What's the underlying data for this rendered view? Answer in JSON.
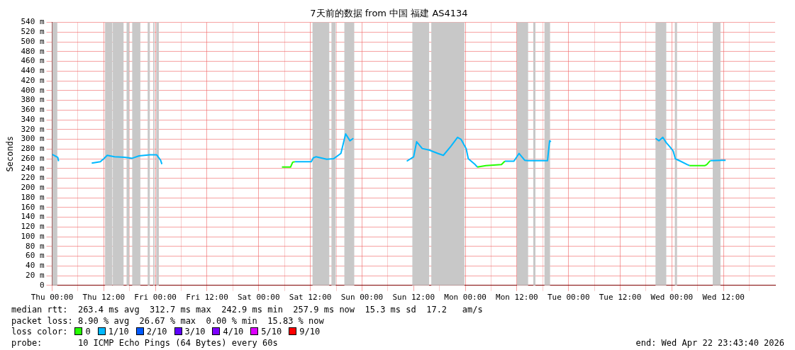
{
  "chart_data": {
    "type": "line",
    "title": "7天前的数据 from 中国 福建 AS4134",
    "ylabel": "Seconds",
    "legend_title": "loss color:",
    "legend": "bottom",
    "grid": true,
    "xlim": [
      "2026-04-16T00:00",
      "2026-04-23T00:00"
    ],
    "xticks": [
      {
        "value": "2026-04-16T00:00",
        "label": "Thu 00:00"
      },
      {
        "value": "2026-04-16T06:00",
        "label": null
      },
      {
        "value": "2026-04-16T12:00",
        "label": "Thu 12:00"
      },
      {
        "value": "2026-04-16T18:00",
        "label": null
      },
      {
        "value": "2026-04-17T00:00",
        "label": "Fri 00:00"
      },
      {
        "value": "2026-04-17T06:00",
        "label": null
      },
      {
        "value": "2026-04-17T12:00",
        "label": "Fri 12:00"
      },
      {
        "value": "2026-04-17T18:00",
        "label": null
      },
      {
        "value": "2026-04-18T00:00",
        "label": "Sat 00:00"
      },
      {
        "value": "2026-04-18T06:00",
        "label": null
      },
      {
        "value": "2026-04-18T12:00",
        "label": "Sat 12:00"
      },
      {
        "value": "2026-04-18T18:00",
        "label": null
      },
      {
        "value": "2026-04-19T00:00",
        "label": "Sun 00:00"
      },
      {
        "value": "2026-04-19T06:00",
        "label": null
      },
      {
        "value": "2026-04-19T12:00",
        "label": "Sun 12:00"
      },
      {
        "value": "2026-04-19T18:00",
        "label": null
      },
      {
        "value": "2026-04-20T00:00",
        "label": "Mon 00:00"
      },
      {
        "value": "2026-04-20T06:00",
        "label": null
      },
      {
        "value": "2026-04-20T12:00",
        "label": "Mon 12:00"
      },
      {
        "value": "2026-04-20T18:00",
        "label": null
      },
      {
        "value": "2026-04-21T00:00",
        "label": "Tue 00:00"
      },
      {
        "value": "2026-04-21T06:00",
        "label": null
      },
      {
        "value": "2026-04-21T12:00",
        "label": "Tue 12:00"
      },
      {
        "value": "2026-04-21T18:00",
        "label": null
      },
      {
        "value": "2026-04-22T00:00",
        "label": "Wed 00:00"
      },
      {
        "value": "2026-04-22T06:00",
        "label": null
      },
      {
        "value": "2026-04-22T12:00",
        "label": "Wed 12:00"
      },
      {
        "value": "2026-04-22T18:00",
        "label": null
      }
    ],
    "ylim": [
      0,
      540
    ],
    "yticks": [
      0,
      {
        "value": 20,
        "label": "20 m"
      },
      {
        "value": 40,
        "label": "40 m"
      },
      {
        "value": 60,
        "label": "60 m"
      },
      {
        "value": 80,
        "label": "80 m"
      },
      {
        "value": 100,
        "label": "100 m"
      },
      {
        "value": 120,
        "label": "120 m"
      },
      {
        "value": 140,
        "label": "140 m"
      },
      {
        "value": 160,
        "label": "160 m"
      },
      {
        "value": 180,
        "label": "180 m"
      },
      {
        "value": 200,
        "label": "200 m"
      },
      {
        "value": 220,
        "label": "220 m"
      },
      {
        "value": 240,
        "label": "240 m"
      },
      {
        "value": 260,
        "label": "260 m"
      },
      {
        "value": 280,
        "label": "280 m"
      },
      {
        "value": 300,
        "label": "300 m"
      },
      {
        "value": 320,
        "label": "320 m"
      },
      {
        "value": 340,
        "label": "340 m"
      },
      {
        "value": 360,
        "label": "360 m"
      },
      {
        "value": 380,
        "label": "380 m"
      },
      {
        "value": 400,
        "label": "400 m"
      },
      {
        "value": 420,
        "label": "420 m"
      },
      {
        "value": 440,
        "label": "440 m"
      },
      {
        "value": 460,
        "label": "460 m"
      },
      {
        "value": 480,
        "label": "480 m"
      },
      {
        "value": 500,
        "label": "500 m"
      },
      {
        "value": 520,
        "label": "520 m"
      },
      {
        "value": 540,
        "label": "540 m"
      }
    ],
    "bands": [
      {
        "axis": "x",
        "from": "2026-04-16T00:00",
        "to": "2026-04-16T01:12",
        "color": "#c8c8c8"
      },
      {
        "axis": "x",
        "from": "2026-04-16T12:18",
        "to": "2026-04-16T14:00",
        "color": "#c8c8c8"
      },
      {
        "axis": "x",
        "from": "2026-04-16T14:06",
        "to": "2026-04-16T16:36",
        "color": "#c8c8c8"
      },
      {
        "axis": "x",
        "from": "2026-04-16T17:18",
        "to": "2026-04-16T17:54",
        "color": "#c8c8c8"
      },
      {
        "axis": "x",
        "from": "2026-04-16T18:36",
        "to": "2026-04-16T20:30",
        "color": "#c8c8c8"
      },
      {
        "axis": "x",
        "from": "2026-04-16T22:12",
        "to": "2026-04-16T22:42",
        "color": "#c8c8c8"
      },
      {
        "axis": "x",
        "from": "2026-04-16T23:30",
        "to": "2026-04-16T23:48",
        "color": "#c8c8c8"
      },
      {
        "axis": "x",
        "from": "2026-04-17T00:12",
        "to": "2026-04-17T00:48",
        "color": "#c8c8c8"
      },
      {
        "axis": "x",
        "from": "2026-04-18T12:30",
        "to": "2026-04-18T16:24",
        "color": "#c8c8c8"
      },
      {
        "axis": "x",
        "from": "2026-04-18T16:54",
        "to": "2026-04-18T17:54",
        "color": "#c8c8c8"
      },
      {
        "axis": "x",
        "from": "2026-04-18T19:54",
        "to": "2026-04-18T22:12",
        "color": "#c8c8c8"
      },
      {
        "axis": "x",
        "from": "2026-04-19T11:42",
        "to": "2026-04-19T15:36",
        "color": "#c8c8c8"
      },
      {
        "axis": "x",
        "from": "2026-04-19T16:06",
        "to": "2026-04-19T23:48",
        "color": "#c8c8c8"
      },
      {
        "axis": "x",
        "from": "2026-04-20T12:00",
        "to": "2026-04-20T14:36",
        "color": "#c8c8c8"
      },
      {
        "axis": "x",
        "from": "2026-04-20T15:48",
        "to": "2026-04-20T16:18",
        "color": "#c8c8c8"
      },
      {
        "axis": "x",
        "from": "2026-04-20T18:24",
        "to": "2026-04-20T19:42",
        "color": "#c8c8c8"
      },
      {
        "axis": "x",
        "from": "2026-04-21T20:12",
        "to": "2026-04-21T22:42",
        "color": "#c8c8c8"
      },
      {
        "axis": "x",
        "from": "2026-04-22T00:42",
        "to": "2026-04-22T01:12",
        "color": "#c8c8c8"
      },
      {
        "axis": "x",
        "from": "2026-04-22T09:30",
        "to": "2026-04-22T11:18",
        "color": "#c8c8c8"
      }
    ],
    "series": [
      {
        "name": "0",
        "color": "#26ff00",
        "x": [
          "2026-04-18T05:24",
          "2026-04-18T07:24",
          "2026-04-18T07:54",
          "2026-04-18T08:24",
          "2026-04-18T22:00",
          "2026-04-20T02:48",
          "2026-04-20T04:48",
          "2026-04-20T08:24",
          "2026-04-20T09:12",
          "2026-04-20T19:54",
          "2026-04-22T04:06",
          "2026-04-22T07:42",
          "2026-04-22T08:06",
          "2026-04-22T08:54"
        ],
        "values": [
          243,
          243,
          253,
          254,
          null,
          243,
          246,
          248,
          255,
          null,
          246,
          246,
          248,
          256
        ]
      },
      {
        "name": "1/10",
        "color": "#00b8ff",
        "x": [
          "2026-04-16T00:00",
          "2026-04-16T01:18",
          "2026-04-16T01:30",
          "2026-04-16T01:36",
          "2026-04-16T09:12",
          "2026-04-16T11:12",
          "2026-04-16T12:00",
          "2026-04-16T12:48",
          "2026-04-16T14:30",
          "2026-04-16T16:54",
          "2026-04-16T18:36",
          "2026-04-16T20:12",
          "2026-04-16T22:42",
          "2026-04-17T00:18",
          "2026-04-17T01:12",
          "2026-04-17T01:30",
          "2026-04-17T16:00",
          "2026-04-18T08:24",
          "2026-04-18T12:12",
          "2026-04-18T12:42",
          "2026-04-18T13:18",
          "2026-04-18T15:48",
          "2026-04-18T17:24",
          "2026-04-18T19:06",
          "2026-04-18T20:12",
          "2026-04-18T21:12",
          "2026-04-18T22:00",
          "2026-04-19T03:00",
          "2026-04-19T10:24",
          "2026-04-19T12:00",
          "2026-04-19T12:42",
          "2026-04-19T14:00",
          "2026-04-19T15:36",
          "2026-04-19T17:36",
          "2026-04-19T18:54",
          "2026-04-19T20:36",
          "2026-04-19T22:12",
          "2026-04-19T23:00",
          "2026-04-20T00:12",
          "2026-04-20T00:42",
          "2026-04-20T02:18",
          "2026-04-20T02:48",
          "2026-04-20T04:00",
          "2026-04-20T09:12",
          "2026-04-20T11:18",
          "2026-04-20T12:30",
          "2026-04-20T13:48",
          "2026-04-20T14:36",
          "2026-04-20T18:42",
          "2026-04-20T19:06",
          "2026-04-20T19:36",
          "2026-04-20T19:54",
          "2026-04-21T10:00",
          "2026-04-21T20:12",
          "2026-04-21T21:00",
          "2026-04-21T21:54",
          "2026-04-21T22:42",
          "2026-04-21T23:30",
          "2026-04-22T00:18",
          "2026-04-22T00:48",
          "2026-04-22T02:00",
          "2026-04-22T03:36",
          "2026-04-22T04:06",
          "2026-04-22T06:00",
          "2026-04-22T08:54",
          "2026-04-22T12:30"
        ],
        "values": [
          269,
          263,
          255,
          null,
          251,
          254,
          260,
          267,
          264,
          263,
          261,
          266,
          268,
          268,
          257,
          249,
          null,
          254,
          254,
          262,
          264,
          259,
          260,
          271,
          311,
          297,
          302,
          null,
          255,
          264,
          295,
          281,
          278,
          271,
          267,
          285,
          304,
          300,
          281,
          260,
          248,
          243,
          null,
          255,
          255,
          271,
          257,
          256,
          256,
          256,
          297,
          295,
          null,
          302,
          297,
          304,
          293,
          285,
          276,
          260,
          255,
          248,
          246,
          null,
          256,
          257
        ]
      },
      {
        "name": "2/10",
        "color": "#0059ff"
      },
      {
        "name": "3/10",
        "color": "#5e00ff"
      },
      {
        "name": "4/10",
        "color": "#7e00ff"
      },
      {
        "name": "5/10",
        "color": "#dd00ff"
      },
      {
        "name": "9/10",
        "color": "#ff0000"
      }
    ],
    "annotations": [
      "median rtt:  263.4 ms avg  312.7 ms max  242.9 ms min  257.9 ms now  15.3 ms sd  17.2   am/s",
      "packet loss: 8.90 % avg  26.67 % max  0.00 % min  15.83 % now",
      "probe:       10 ICMP Echo Pings (64 Bytes) every 60s",
      "end: Wed Apr 22 23:43:40 2026"
    ]
  }
}
